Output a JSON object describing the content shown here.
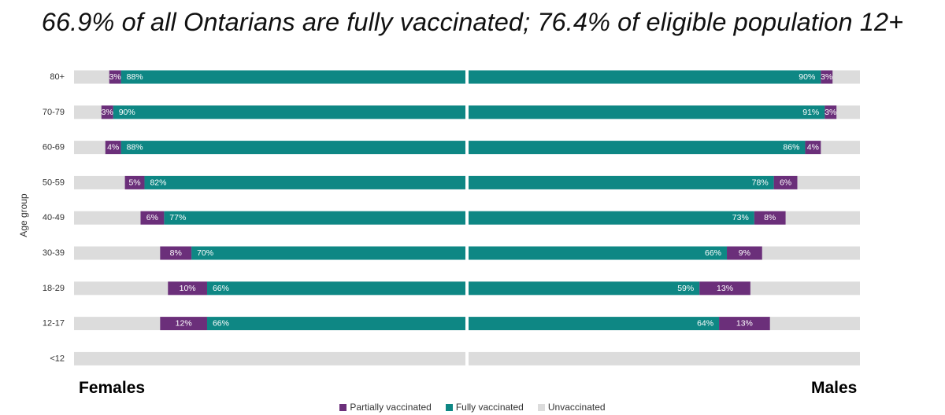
{
  "header": {
    "title": "66.9% of all Ontarians are fully vaccinated; 76.4% of eligible population 12+"
  },
  "side_labels": {
    "left": "Females",
    "right": "Males"
  },
  "legend": [
    {
      "label": "Partially vaccinated",
      "color": "#6b2f7a"
    },
    {
      "label": "Fully vaccinated",
      "color": "#0e8784"
    },
    {
      "label": "Unvaccinated",
      "color": "#dcdcdc"
    }
  ],
  "chart_data": {
    "type": "bar",
    "orientation": "horizontal-butterfly",
    "ylabel": "Age group",
    "categories": [
      "80+",
      "70-79",
      "60-69",
      "50-59",
      "40-49",
      "30-39",
      "18-29",
      "12-17",
      "<12"
    ],
    "panels": [
      {
        "name": "Females",
        "series": [
          {
            "name": "Fully vaccinated",
            "values": [
              88,
              90,
              88,
              82,
              77,
              70,
              66,
              66,
              0
            ],
            "labels": [
              "88%",
              "90%",
              "88%",
              "82%",
              "77%",
              "70%",
              "66%",
              "66%",
              ""
            ]
          },
          {
            "name": "Partially vaccinated",
            "values": [
              3,
              3,
              4,
              5,
              6,
              8,
              10,
              12,
              0
            ],
            "labels": [
              "3%",
              "3%",
              "4%",
              "5%",
              "6%",
              "8%",
              "10%",
              "12%",
              ""
            ]
          }
        ]
      },
      {
        "name": "Males",
        "series": [
          {
            "name": "Fully vaccinated",
            "values": [
              90,
              91,
              86,
              78,
              73,
              66,
              59,
              64,
              0
            ],
            "labels": [
              "90%",
              "91%",
              "86%",
              "78%",
              "73%",
              "66%",
              "59%",
              "64%",
              ""
            ]
          },
          {
            "name": "Partially vaccinated",
            "values": [
              3,
              3,
              4,
              6,
              8,
              9,
              13,
              13,
              0
            ],
            "labels": [
              "3%",
              "3%",
              "4%",
              "6%",
              "8%",
              "9%",
              "13%",
              "13%",
              ""
            ]
          }
        ]
      }
    ],
    "xlim": [
      0,
      100
    ],
    "colors": {
      "full": "#0e8784",
      "partial": "#6b2f7a",
      "unvaccinated": "#dcdcdc"
    },
    "grid": false,
    "legend_position": "bottom"
  }
}
